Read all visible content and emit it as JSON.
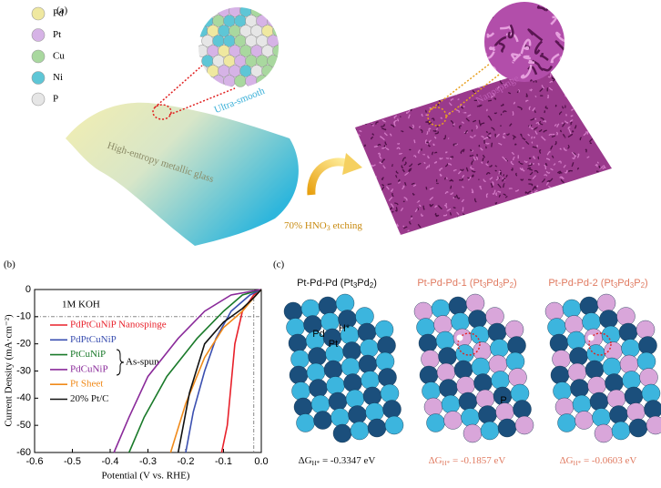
{
  "panel_a": {
    "label": "(a)",
    "elements": [
      {
        "symbol": "Pd",
        "color": "#efe8a0"
      },
      {
        "symbol": "Pt",
        "color": "#d6b3e6"
      },
      {
        "symbol": "Cu",
        "color": "#a9d89f"
      },
      {
        "symbol": "Ni",
        "color": "#5ec6d6"
      },
      {
        "symbol": "P",
        "color": "#e6e6e6"
      }
    ],
    "smooth_label": "Ultra-smooth",
    "glass_label": "High-entropy metallic glass",
    "sponge_label": "Nanospinge",
    "etching_label": [
      "70% HNO",
      "3",
      " etching"
    ]
  },
  "chart_data": {
    "type": "line",
    "panel_label": "(b)",
    "x_label": "Potential (V vs. RHE)",
    "y_label": "Current Density (mA·cm⁻²)",
    "annotations": [
      "1M KOH",
      "As-spun"
    ],
    "xlim": [
      -0.6,
      0
    ],
    "xticks": [
      -0.6,
      -0.5,
      -0.4,
      -0.3,
      -0.2,
      -0.1,
      {
        "value": 0,
        "label": "0.0"
      }
    ],
    "ylim": [
      -60,
      0
    ],
    "yticks": [
      -60,
      -50,
      -40,
      -30,
      -20,
      -10,
      0
    ],
    "series": [
      {
        "name": "PdPtCuNiP Nanospinge",
        "color": "#e8202a",
        "x": [
          0,
          -0.02,
          -0.05,
          -0.07,
          -0.08,
          -0.09,
          -0.105
        ],
        "values": [
          0,
          -2,
          -8,
          -20,
          -35,
          -50,
          -60
        ]
      },
      {
        "name": "PdPtCuNiP",
        "color": "#3a4fb0",
        "x": [
          0,
          -0.03,
          -0.08,
          -0.12,
          -0.15,
          -0.18,
          -0.2
        ],
        "values": [
          0,
          -2,
          -8,
          -18,
          -30,
          -45,
          -60
        ]
      },
      {
        "name": "PtCuNiP",
        "color": "#1a7a2a",
        "x": [
          0,
          -0.05,
          -0.1,
          -0.17,
          -0.25,
          -0.31,
          -0.35
        ],
        "values": [
          0,
          -2,
          -8,
          -18,
          -32,
          -47,
          -60
        ]
      },
      {
        "name": "PdCuNiP",
        "color": "#8a2a9a",
        "x": [
          0,
          -0.08,
          -0.15,
          -0.22,
          -0.3,
          -0.35,
          -0.39
        ],
        "values": [
          0,
          -2,
          -8,
          -18,
          -32,
          -47,
          -60
        ]
      },
      {
        "name": "Pt Sheet",
        "color": "#f08a1a",
        "x": [
          0,
          -0.02,
          -0.05,
          -0.1,
          -0.15,
          -0.2,
          -0.24
        ],
        "values": [
          0,
          -3,
          -8,
          -14,
          -25,
          -42,
          -60
        ]
      },
      {
        "name": "20% Pt/C",
        "color": "#111111",
        "x": [
          0,
          -0.02,
          -0.05,
          -0.1,
          -0.15,
          -0.19,
          -0.22
        ],
        "values": [
          0,
          -3,
          -7,
          -12,
          -20,
          -38,
          -60
        ]
      }
    ]
  },
  "panel_c": {
    "label": "(c)",
    "structures": [
      {
        "title": [
          "Pt-Pd-Pd (Pt",
          "3",
          "Pd",
          "2",
          ")"
        ],
        "color": "#111111",
        "delta_g": [
          "ΔG",
          "H*",
          " = -0.3347 eV"
        ],
        "atom_labels": [
          "Pd",
          "Pt",
          "H*"
        ]
      },
      {
        "title": [
          "Pt-Pd-Pd-1 (Pt",
          "3",
          "Pd",
          "3",
          "P",
          "2",
          ")"
        ],
        "color": "#e07a60",
        "delta_g": [
          "ΔG",
          "H*",
          " = -0.1857 eV"
        ],
        "atom_labels": [
          "P"
        ]
      },
      {
        "title": [
          "Pt-Pd-Pd-2 (Pt",
          "3",
          "Pd",
          "3",
          "P",
          "2",
          ")"
        ],
        "color": "#e07a60",
        "delta_g": [
          "ΔG",
          "H*",
          " = -0.0603 eV"
        ],
        "atom_labels": []
      }
    ]
  }
}
